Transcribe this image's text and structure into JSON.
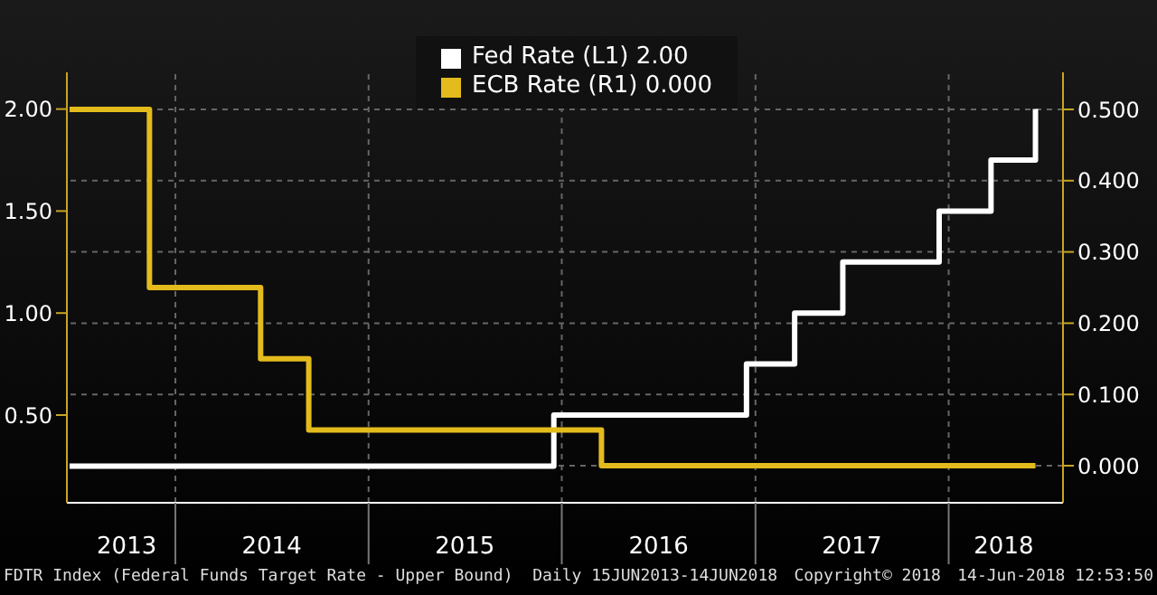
{
  "chart_data": {
    "type": "step",
    "series": [
      {
        "name": "Fed Rate (L1) 2.00",
        "color": "#ffffff",
        "axis": "y",
        "x": [
          "2013-06-15",
          "2015-12-17",
          "2016-12-15",
          "2017-03-16",
          "2017-06-15",
          "2017-12-14",
          "2018-03-22",
          "2018-06-14"
        ],
        "values": [
          0.25,
          0.5,
          0.75,
          1,
          1.25,
          1.5,
          1.75,
          2
        ]
      },
      {
        "name": "ECB Rate (R1) 0.000",
        "color": "#e3bb1c",
        "axis": "y2",
        "x": [
          "2013-06-15",
          "2013-11-13",
          "2014-06-11",
          "2014-09-10",
          "2016-03-16",
          "2018-06-14"
        ],
        "values": [
          0.5,
          0.25,
          0.15,
          0.05,
          0,
          0
        ]
      }
    ],
    "xlim": [
      "2013-06-10",
      "2018-08-05"
    ],
    "xticks": [
      {
        "value": "2013-10-01",
        "label": "2013"
      },
      {
        "value": "2014-01-01",
        "label": null
      },
      {
        "value": "2014-07-02",
        "label": "2014"
      },
      {
        "value": "2015-01-01",
        "label": null
      },
      {
        "value": "2015-07-02",
        "label": "2015"
      },
      {
        "value": "2016-01-01",
        "label": null
      },
      {
        "value": "2016-07-02",
        "label": "2016"
      },
      {
        "value": "2017-01-01",
        "label": null
      },
      {
        "value": "2017-07-02",
        "label": "2017"
      },
      {
        "value": "2018-01-01",
        "label": null
      },
      {
        "value": "2018-04-15",
        "label": "2018"
      }
    ],
    "ylim": [
      0.07,
      2.18
    ],
    "yticks": [
      {
        "value": 0.5,
        "label": "0.50"
      },
      {
        "value": 1,
        "label": "1.00"
      },
      {
        "value": 1.5,
        "label": "1.50"
      },
      {
        "value": 2,
        "label": "2.00"
      }
    ],
    "y2lim": [
      -0.052,
      0.552
    ],
    "y2ticks": [
      {
        "value": 0,
        "label": "0.000"
      },
      {
        "value": 0.1,
        "label": "0.100"
      },
      {
        "value": 0.2,
        "label": "0.200"
      },
      {
        "value": 0.3,
        "label": "0.300"
      },
      {
        "value": 0.4,
        "label": "0.400"
      },
      {
        "value": 0.5,
        "label": "0.500"
      }
    ],
    "grid": true,
    "legend": "top",
    "annotations": [
      "FDTR Index (Federal Funds Target Rate - Upper Bound)  Daily 15JUN2013-14JUN2018",
      "Copyright© 2018",
      "14-Jun-2018 12:53:50"
    ]
  }
}
